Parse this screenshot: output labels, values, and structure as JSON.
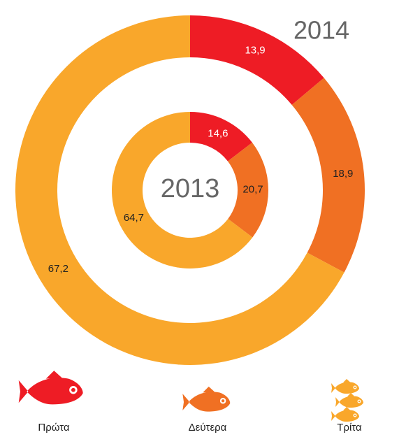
{
  "chart_data": {
    "type": "donut",
    "categories": [
      "Πρώτα",
      "Δεύτερα",
      "Τρίτα"
    ],
    "colors": [
      "#ee1c25",
      "#f07023",
      "#f9a72b"
    ],
    "series": [
      {
        "name": "2014",
        "values": [
          13.9,
          18.9,
          67.2
        ],
        "value_labels": [
          "13,9",
          "18,9",
          "67,2"
        ]
      },
      {
        "name": "2013",
        "values": [
          14.6,
          20.7,
          64.7
        ],
        "value_labels": [
          "14,6",
          "20,7",
          "64,7"
        ]
      }
    ]
  }
}
